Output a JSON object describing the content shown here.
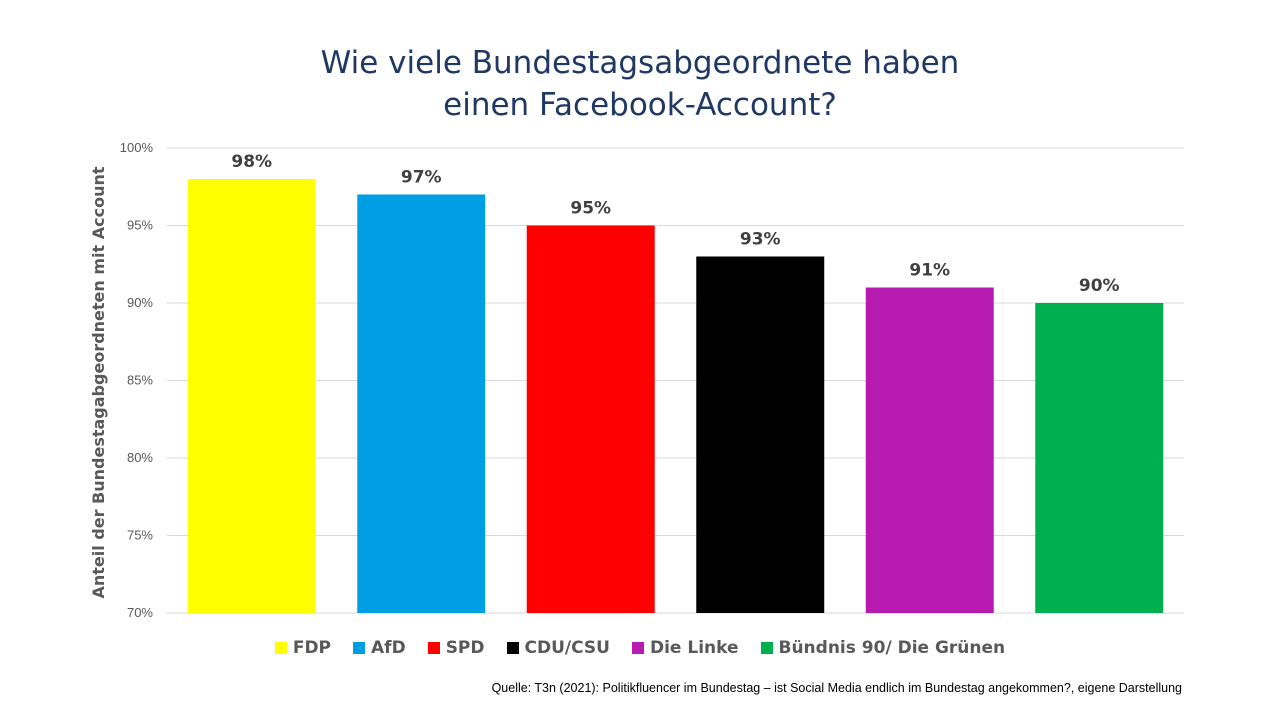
{
  "title": {
    "line1": "Wie viele Bundestagsabgeordnete  haben",
    "line2": "einen Facebook-Account?"
  },
  "source": "Quelle: T3n (2021): Politikfluencer im Bundestag – ist Social Media endlich im Bundestag angekommen?,  eigene Darstellung",
  "chart_data": {
    "type": "bar",
    "title": "Wie viele Bundestagsabgeordnete haben einen Facebook-Account?",
    "xlabel": "",
    "ylabel": "Anteil der Bundestagabgeordneten  mit Account",
    "ylim": [
      70,
      100
    ],
    "yticks": [
      70,
      75,
      80,
      85,
      90,
      95,
      100
    ],
    "ytick_labels": [
      "70%",
      "75%",
      "80%",
      "85%",
      "90%",
      "95%",
      "100%"
    ],
    "grid": true,
    "legend_position": "bottom",
    "categories": [
      "FDP",
      "AfD",
      "SPD",
      "CDU/CSU",
      "Die Linke",
      "Bündnis 90/ Die Grünen"
    ],
    "values": [
      98,
      97,
      95,
      93,
      91,
      90
    ],
    "data_labels": [
      "98%",
      "97%",
      "95%",
      "93%",
      "91%",
      "90%"
    ],
    "colors": [
      "#ffff00",
      "#009fe3",
      "#ff0000",
      "#000000",
      "#b61aae",
      "#00b050"
    ]
  }
}
